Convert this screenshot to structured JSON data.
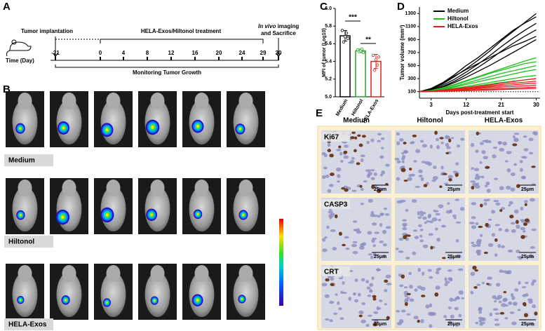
{
  "panel_a": {
    "letter": "A",
    "start_label": "Tumor implantation",
    "time_label": "Time (Day)",
    "treatment_label": "HELA-Exos/Hiltonol treatment",
    "endpoint": {
      "italic": "In vivo",
      "line1": " imaging",
      "line2": "and Sacrifice"
    },
    "days": [
      "-21",
      "0",
      "4",
      "8",
      "12",
      "16",
      "20",
      "24",
      "29",
      "30"
    ],
    "monitoring_label": "Monitoring Tumor Growth"
  },
  "panel_b": {
    "letter": "B",
    "rows": [
      "Medium",
      "Hiltonol",
      "HELA-Exos"
    ]
  },
  "panel_e": {
    "letter": "E",
    "columns": [
      "Medium",
      "Hiltonol",
      "HELA-Exos"
    ],
    "rows": [
      "Ki67",
      "CASP3",
      "CRT"
    ],
    "scale_bar": "25μm"
  },
  "chart_data": [
    {
      "type": "bar",
      "letter": "C",
      "ylabel": "MFI of tumor (Log10)",
      "categories": [
        "Medium",
        "Hiltonol",
        "HELA-Exos"
      ],
      "values": [
        5.69,
        5.52,
        5.4
      ],
      "errors": [
        0.06,
        0.02,
        0.08
      ],
      "points": [
        [
          5.75,
          5.62,
          5.68,
          5.72,
          5.66
        ],
        [
          5.53,
          5.51,
          5.52,
          5.54,
          5.5
        ],
        [
          5.47,
          5.3,
          5.42,
          5.36,
          5.45
        ]
      ],
      "colors": [
        "#000000",
        "#2ca02c",
        "#e3221c"
      ],
      "annotations": [
        "***",
        "**"
      ],
      "ylim": [
        5.0,
        6.0
      ],
      "yticks": [
        {
          "value": 5.0,
          "label": "5.0"
        },
        5.2,
        5.4,
        5.6,
        5.8,
        {
          "value": 6.0,
          "label": "6.0"
        }
      ]
    },
    {
      "type": "line",
      "letter": "D",
      "xlabel": "Days post-treatment start",
      "ylabel": "Tumor volume (mm³)",
      "x": [
        0,
        3,
        6,
        9,
        12,
        15,
        18,
        21,
        24,
        27,
        30
      ],
      "xlim": [
        0,
        31
      ],
      "xticks": [
        3,
        12,
        21,
        30
      ],
      "ylim": [
        0,
        1400
      ],
      "yticks": [
        100,
        300,
        500,
        700,
        900,
        1100,
        1300
      ],
      "reference_line": 100,
      "legend": "top-left",
      "groups": [
        {
          "name": "Medium",
          "color": "#000000",
          "lines": [
            [
              100,
              140,
              220,
              330,
              450,
              580,
              720,
              880,
              1020,
              1160,
              1300
            ],
            [
              100,
              150,
              240,
              360,
              500,
              620,
              760,
              900,
              1040,
              1150,
              1250
            ],
            [
              100,
              130,
              200,
              290,
              400,
              520,
              650,
              790,
              920,
              1040,
              1150
            ],
            [
              100,
              120,
              180,
              260,
              360,
              470,
              590,
              720,
              840,
              950,
              1050
            ],
            [
              100,
              130,
              230,
              340,
              440,
              530,
              620,
              710,
              800,
              870,
              950
            ],
            [
              100,
              120,
              170,
              240,
              320,
              410,
              500,
              600,
              700,
              800,
              900
            ]
          ]
        },
        {
          "name": "Hiltonol",
          "color": "#1fbf1f",
          "lines": [
            [
              100,
              120,
              160,
              210,
              270,
              330,
              390,
              450,
              510,
              570,
              620
            ],
            [
              100,
              115,
              150,
              200,
              260,
              320,
              380,
              430,
              480,
              530,
              560
            ],
            [
              100,
              110,
              140,
              180,
              230,
              280,
              330,
              380,
              420,
              460,
              500
            ],
            [
              100,
              110,
              130,
              170,
              210,
              250,
              290,
              330,
              370,
              410,
              440
            ],
            [
              100,
              105,
              125,
              150,
              180,
              210,
              240,
              270,
              300,
              330,
              350
            ],
            [
              100,
              105,
              120,
              140,
              165,
              190,
              215,
              240,
              260,
              280,
              300
            ]
          ]
        },
        {
          "name": "HELA-Exos",
          "color": "#e3221c",
          "lines": [
            [
              100,
              110,
              125,
              145,
              165,
              185,
              205,
              230,
              255,
              280,
              300
            ],
            [
              100,
              108,
              120,
              135,
              150,
              170,
              190,
              210,
              230,
              245,
              260
            ],
            [
              100,
              105,
              115,
              130,
              145,
              160,
              175,
              190,
              205,
              220,
              230
            ],
            [
              100,
              105,
              112,
              122,
              134,
              146,
              158,
              170,
              180,
              190,
              200
            ],
            [
              100,
              103,
              108,
              115,
              122,
              130,
              138,
              146,
              155,
              163,
              170
            ],
            [
              100,
              102,
              106,
              110,
              115,
              120,
              126,
              132,
              138,
              144,
              150
            ]
          ]
        }
      ]
    }
  ]
}
